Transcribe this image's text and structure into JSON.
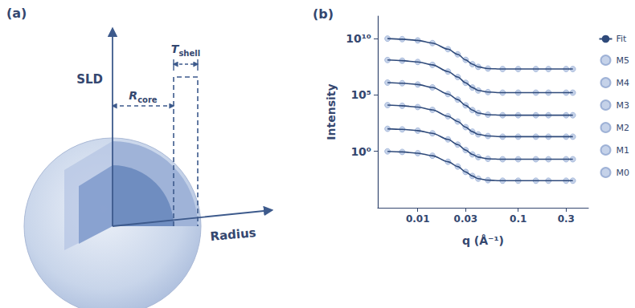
{
  "diagram": {
    "panel_label": "(a)",
    "y_axis": "SLD",
    "x_axis": "Radius",
    "r_core": {
      "symbol": "R",
      "subscript": "core"
    },
    "t_shell": {
      "symbol": "T",
      "subscript": "shell"
    }
  },
  "chart_data": {
    "type": "line",
    "panel_label": "(b)",
    "x_label": "q (Å⁻¹)",
    "y_label": "Intensity",
    "log": true,
    "grid": false,
    "legend": "right",
    "xlim": [
      0.004,
      0.5
    ],
    "ylim": [
      1e-05,
      1000000000000
    ],
    "xticks": [
      0.01,
      0.03,
      0.1,
      0.3
    ],
    "yticks": [
      {
        "value": 1,
        "label": "10⁰"
      },
      {
        "value": 100000,
        "label": "10⁵"
      },
      {
        "value": 10000000000,
        "label": "10¹⁰"
      }
    ],
    "x": [
      0.005,
      0.007,
      0.01,
      0.014,
      0.02,
      0.025,
      0.03,
      0.035,
      0.04,
      0.05,
      0.07,
      0.1,
      0.15,
      0.2,
      0.3,
      0.35
    ],
    "fit": {
      "name": "Fit",
      "color": "#2f4a7a",
      "line_style": "solid"
    },
    "series": [
      {
        "name": "M5",
        "color": "#b7c7e4",
        "marker": "circle",
        "values": [
          10000000000,
          8900000000,
          6900000000,
          4000000000,
          1150000000,
          400000000,
          130000000,
          54000000,
          31000000,
          22000000,
          20000000,
          20000000,
          20000000,
          20000000,
          20000000,
          20000000
        ]
      },
      {
        "name": "M4",
        "color": "#b7c7e4",
        "marker": "circle",
        "values": [
          126000000,
          110000000,
          85000000,
          47000000,
          12000000,
          3900000,
          1200000,
          460000,
          250000,
          180000,
          160000,
          160000,
          160000,
          160000,
          160000,
          160000
        ]
      },
      {
        "name": "M3",
        "color": "#b7c7e4",
        "marker": "circle",
        "values": [
          1260000,
          1100000,
          850000,
          470000,
          120000,
          39000,
          12000,
          4600,
          2500,
          1800,
          1600,
          1600,
          1600,
          1600,
          1600,
          1600
        ]
      },
      {
        "name": "M2",
        "color": "#b7c7e4",
        "marker": "circle",
        "values": [
          12600,
          11000,
          8500,
          4800,
          1300,
          440,
          140,
          56,
          32,
          23,
          20,
          20,
          20,
          20,
          20,
          20
        ]
      },
      {
        "name": "M1",
        "color": "#b7c7e4",
        "marker": "circle",
        "values": [
          100,
          89,
          69,
          40,
          11.5,
          4,
          1.3,
          0.54,
          0.31,
          0.22,
          0.2,
          0.2,
          0.2,
          0.2,
          0.2,
          0.2
        ]
      },
      {
        "name": "M0",
        "color": "#b7c7e4",
        "marker": "circle",
        "values": [
          1,
          0.89,
          0.69,
          0.41,
          0.12,
          0.045,
          0.015,
          0.0066,
          0.0038,
          0.0028,
          0.0025,
          0.0025,
          0.0025,
          0.0025,
          0.0025,
          0.0025
        ]
      }
    ]
  }
}
